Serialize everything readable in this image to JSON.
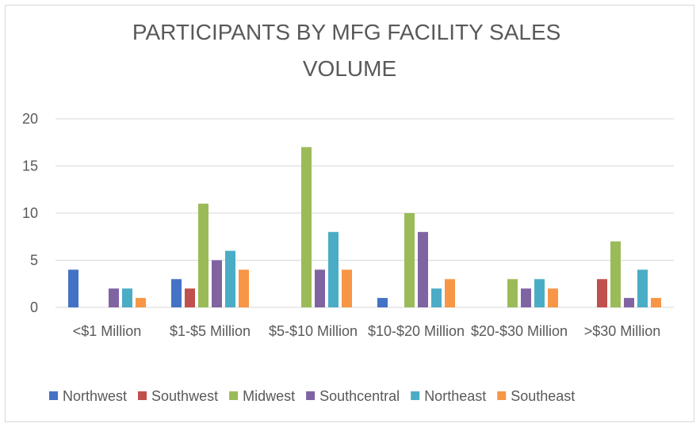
{
  "chart_data": {
    "type": "bar",
    "title": "PARTICIPANTS BY MFG FACILITY SALES VOLUME",
    "categories": [
      "<$1 Million",
      "$1-$5 Million",
      "$5-$10 Million",
      "$10-$20 Million",
      "$20-$30 Million",
      ">$30 Million"
    ],
    "series": [
      {
        "name": "Northwest",
        "color": "#4472c4",
        "values": [
          4,
          3,
          0,
          1,
          0,
          0
        ]
      },
      {
        "name": "Southwest",
        "color": "#c0504d",
        "values": [
          0,
          2,
          0,
          0,
          0,
          3
        ]
      },
      {
        "name": "Midwest",
        "color": "#9bbb59",
        "values": [
          0,
          11,
          17,
          10,
          3,
          7
        ]
      },
      {
        "name": "Southcentral",
        "color": "#8064a2",
        "values": [
          2,
          5,
          4,
          8,
          2,
          1
        ]
      },
      {
        "name": "Northeast",
        "color": "#4bacc6",
        "values": [
          2,
          6,
          8,
          2,
          3,
          4
        ]
      },
      {
        "name": "Southeast",
        "color": "#f79646",
        "values": [
          1,
          4,
          4,
          3,
          2,
          1
        ]
      }
    ],
    "ylim": [
      0,
      20
    ],
    "yticks": [
      0,
      5,
      10,
      15,
      20
    ],
    "grid": true,
    "legend": "bottom"
  }
}
